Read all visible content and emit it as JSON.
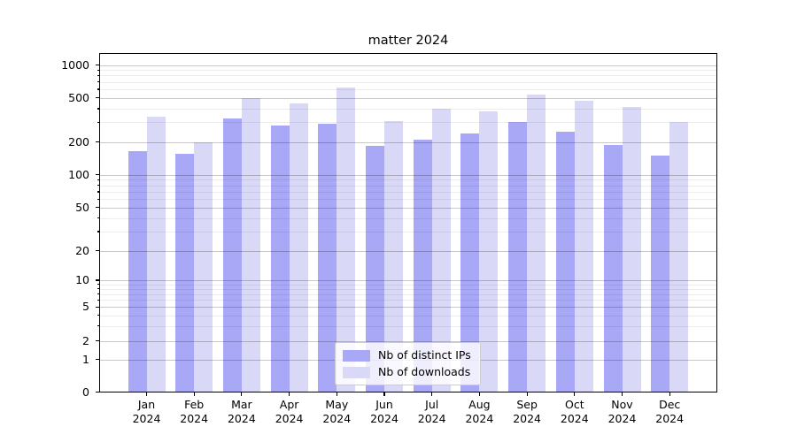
{
  "title": "matter 2024",
  "chart_data": {
    "type": "bar",
    "categories": [
      "Jan 2024",
      "Feb 2024",
      "Mar 2024",
      "Apr 2024",
      "May 2024",
      "Jun 2024",
      "Jul 2024",
      "Aug 2024",
      "Sep 2024",
      "Oct 2024",
      "Nov 2024",
      "Dec 2024"
    ],
    "series": [
      {
        "name": "Nb of distinct IPs",
        "color": "#a8a8f6",
        "values": [
          165,
          155,
          325,
          280,
          290,
          185,
          210,
          240,
          300,
          248,
          187,
          150
        ]
      },
      {
        "name": "Nb of downloads",
        "color": "#d9d9f7",
        "values": [
          335,
          200,
          495,
          445,
          620,
          310,
          400,
          380,
          535,
          470,
          413,
          303
        ]
      }
    ],
    "title": "matter 2024",
    "xlabel": "",
    "ylabel": "",
    "yscale": "symlog",
    "y_ticks": [
      1000,
      500,
      200,
      100,
      50,
      20,
      10,
      5,
      2,
      1,
      0
    ],
    "y_minor_ticks": [
      900,
      800,
      700,
      600,
      400,
      300,
      90,
      80,
      70,
      60,
      40,
      30,
      9,
      8,
      7,
      6,
      4,
      3
    ],
    "ylim": [
      0,
      1290
    ],
    "grid": "both",
    "legend_position": "lower center",
    "background_color": "#ffffff",
    "grid_major_color": "#c6c6c6",
    "grid_minor_color": "#ebebeb"
  }
}
